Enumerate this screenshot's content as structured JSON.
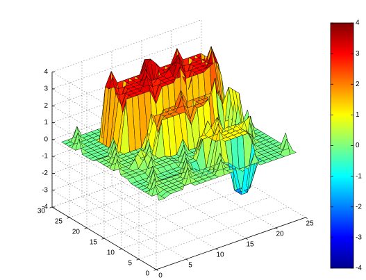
{
  "figure": {
    "background": "#ffffff",
    "edge_color": "#000000"
  },
  "chart_data": {
    "type": "surface3d",
    "title": "",
    "xlabel": "",
    "ylabel": "",
    "zlabel": "",
    "grid": true,
    "colormap": "jet",
    "xlim": [
      0,
      25
    ],
    "ylim": [
      0,
      30
    ],
    "zlim": [
      -4,
      4
    ],
    "clim": [
      -4,
      4
    ],
    "x_ticks": [
      "0",
      "5",
      "10",
      "15",
      "20",
      "25"
    ],
    "y_ticks": [
      "0",
      "5",
      "10",
      "15",
      "20",
      "25",
      "30"
    ],
    "z_ticks": [
      "-4",
      "-3",
      "-2",
      "-1",
      "0",
      "1",
      "2",
      "3",
      "4"
    ],
    "colorbar": {
      "placement": "right",
      "ticks": [
        "-4",
        "-3",
        "-2",
        "-1",
        "0",
        "1",
        "2",
        "3",
        "4"
      ]
    },
    "surface": {
      "x_start": 1,
      "x_end": 24,
      "y_start": 1,
      "y_end": 29,
      "plateaus": [
        {
          "x_range": [
            6,
            22
          ],
          "y_range": [
            19,
            25
          ],
          "z": 3.0
        },
        {
          "x_range": [
            9,
            22
          ],
          "y_range": [
            14,
            17
          ],
          "z": 2.0
        },
        {
          "x_range": [
            13,
            19
          ],
          "y_range": [
            6,
            10
          ],
          "z": 1.0
        },
        {
          "x_range": [
            1,
            9
          ],
          "y_range": [
            10,
            19
          ],
          "z": 0.0
        },
        {
          "x_range": [
            3,
            14
          ],
          "y_range": [
            1,
            6
          ],
          "z": 0.0
        }
      ],
      "peaks": [
        {
          "x": 13,
          "y": 24,
          "z": 3.9
        },
        {
          "x": 16,
          "y": 22,
          "z": 3.6
        },
        {
          "x": 21,
          "y": 19,
          "z": 3.4
        },
        {
          "x": 18,
          "y": 14,
          "z": 2.6
        },
        {
          "x": 15,
          "y": 11,
          "z": 1.6
        },
        {
          "x": 10,
          "y": 16,
          "z": 1.5
        },
        {
          "x": 5,
          "y": 13,
          "z": 0.9
        },
        {
          "x": 20,
          "y": 9,
          "z": 1.2
        }
      ],
      "pits": [
        {
          "x": 17,
          "y": 4,
          "z": -1.9
        },
        {
          "x": 20,
          "y": 15,
          "z": -1.0
        },
        {
          "x": 12,
          "y": 7,
          "z": -0.6
        }
      ]
    }
  }
}
